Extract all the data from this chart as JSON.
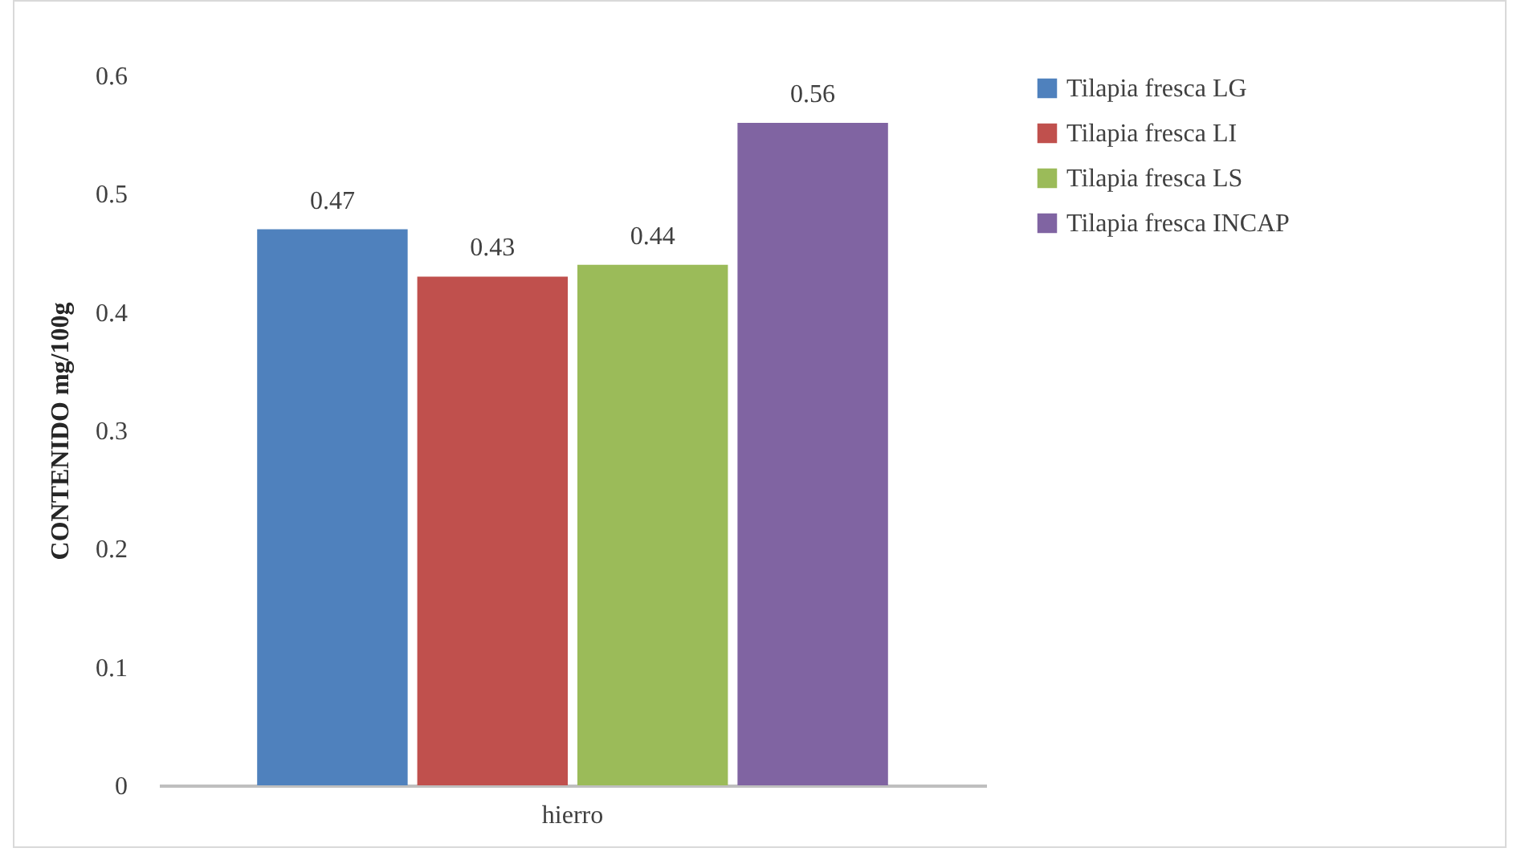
{
  "chart_data": {
    "type": "bar",
    "ylabel": "CONTENIDO mg/100g",
    "categories": [
      "hierro"
    ],
    "series": [
      {
        "name": "Tilapia fresca LG",
        "color": "#4f81bd",
        "values": [
          0.47
        ]
      },
      {
        "name": "Tilapia fresca LI",
        "color": "#c0504d",
        "values": [
          0.43
        ]
      },
      {
        "name": "Tilapia fresca LS",
        "color": "#9bbb59",
        "values": [
          0.44
        ]
      },
      {
        "name": "Tilapia fresca INCAP",
        "color": "#8064a2",
        "values": [
          0.56
        ]
      }
    ],
    "ylim": [
      0,
      0.6
    ],
    "yticks": [
      0,
      0.1,
      0.2,
      0.3,
      0.4,
      0.5,
      0.6
    ],
    "data_labels": true,
    "legend": "right"
  }
}
